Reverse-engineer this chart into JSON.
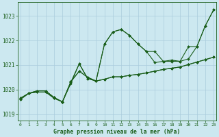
{
  "title": "Graphe pression niveau de la mer (hPa)",
  "background_color": "#cce8f0",
  "grid_color": "#aaccdd",
  "line_color": "#1a5e1a",
  "xlim": [
    -0.3,
    23.3
  ],
  "ylim": [
    1018.75,
    1023.55
  ],
  "yticks": [
    1019,
    1020,
    1021,
    1022,
    1023
  ],
  "xticks": [
    0,
    1,
    2,
    3,
    4,
    5,
    6,
    7,
    8,
    9,
    10,
    11,
    12,
    13,
    14,
    15,
    16,
    17,
    18,
    19,
    20,
    21,
    22,
    23
  ],
  "series": [
    {
      "x": [
        0,
        1,
        2,
        3,
        4,
        5,
        6,
        7,
        8,
        9,
        10,
        11,
        12,
        13,
        14,
        15,
        16,
        17,
        18,
        19,
        20,
        21,
        22,
        23
      ],
      "y": [
        1019.6,
        1019.85,
        1019.9,
        1019.9,
        1019.65,
        1019.5,
        1020.3,
        1021.05,
        1020.45,
        1020.35,
        1021.85,
        1022.35,
        1022.45,
        1022.2,
        1021.85,
        1021.55,
        1021.55,
        1021.15,
        1021.2,
        1021.15,
        1021.75,
        1021.75,
        1022.6,
        1023.25
      ]
    },
    {
      "x": [
        0,
        1,
        2,
        3,
        4,
        5,
        6,
        7,
        8,
        9,
        10,
        11,
        12,
        13,
        14,
        15,
        16,
        17,
        18,
        19,
        20,
        21,
        22,
        23
      ],
      "y": [
        1019.6,
        1019.85,
        1019.9,
        1019.9,
        1019.65,
        1019.5,
        1020.25,
        1021.05,
        1020.45,
        1020.35,
        1021.85,
        1022.35,
        1022.45,
        1022.2,
        1021.85,
        1021.55,
        1021.1,
        1021.15,
        1021.15,
        1021.15,
        1021.25,
        1021.75,
        1022.6,
        1023.25
      ]
    },
    {
      "x": [
        0,
        1,
        2,
        3,
        4,
        5,
        6,
        7,
        8,
        9,
        10,
        11,
        12,
        13,
        14,
        15,
        16,
        17,
        18,
        19,
        20,
        21,
        22,
        23
      ],
      "y": [
        1019.65,
        1019.85,
        1019.95,
        1019.95,
        1019.68,
        1019.5,
        1020.32,
        1020.75,
        1020.5,
        1020.35,
        1020.42,
        1020.52,
        1020.52,
        1020.58,
        1020.62,
        1020.68,
        1020.75,
        1020.82,
        1020.87,
        1020.92,
        1021.02,
        1021.12,
        1021.22,
        1021.32
      ]
    },
    {
      "x": [
        0,
        1,
        2,
        3,
        4,
        5,
        6,
        7,
        8,
        9,
        10,
        11,
        12,
        13,
        14,
        15,
        16,
        17,
        18,
        19,
        20,
        21,
        22,
        23
      ],
      "y": [
        1019.65,
        1019.85,
        1019.95,
        1019.95,
        1019.68,
        1019.5,
        1020.32,
        1020.75,
        1020.5,
        1020.35,
        1020.42,
        1020.52,
        1020.52,
        1020.58,
        1020.62,
        1020.68,
        1020.75,
        1020.82,
        1020.87,
        1020.92,
        1021.02,
        1021.12,
        1021.22,
        1021.32
      ]
    }
  ]
}
